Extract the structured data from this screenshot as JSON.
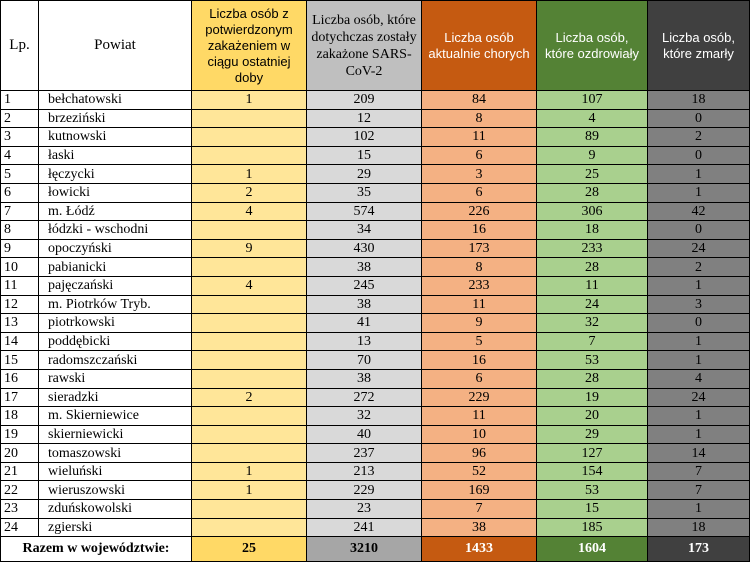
{
  "headers": {
    "lp": "Lp.",
    "powiat": "Powiat",
    "new": "Liczba osób z potwierdzonym zakażeniem w ciągu ostatniej doby",
    "total": "Liczba osób, które dotychczas zostały zakażone SARS-CoV-2",
    "active": "Liczba osób aktualnie chorych",
    "recovered": "Liczba osób, które ozdrowiały",
    "deceased": "Liczba osób, które zmarły"
  },
  "rows": [
    {
      "lp": "1",
      "powiat": "bełchatowski",
      "new": "1",
      "total": "209",
      "active": "84",
      "recovered": "107",
      "deceased": "18"
    },
    {
      "lp": "2",
      "powiat": "brzeziński",
      "new": "",
      "total": "12",
      "active": "8",
      "recovered": "4",
      "deceased": "0"
    },
    {
      "lp": "3",
      "powiat": "kutnowski",
      "new": "",
      "total": "102",
      "active": "11",
      "recovered": "89",
      "deceased": "2"
    },
    {
      "lp": "4",
      "powiat": "łaski",
      "new": "",
      "total": "15",
      "active": "6",
      "recovered": "9",
      "deceased": "0"
    },
    {
      "lp": "5",
      "powiat": "łęczycki",
      "new": "1",
      "total": "29",
      "active": "3",
      "recovered": "25",
      "deceased": "1"
    },
    {
      "lp": "6",
      "powiat": "łowicki",
      "new": "2",
      "total": "35",
      "active": "6",
      "recovered": "28",
      "deceased": "1"
    },
    {
      "lp": "7",
      "powiat": "m. Łódź",
      "new": "4",
      "total": "574",
      "active": "226",
      "recovered": "306",
      "deceased": "42"
    },
    {
      "lp": "8",
      "powiat": "łódzki - wschodni",
      "new": "",
      "total": "34",
      "active": "16",
      "recovered": "18",
      "deceased": "0"
    },
    {
      "lp": "9",
      "powiat": "opoczyński",
      "new": "9",
      "total": "430",
      "active": "173",
      "recovered": "233",
      "deceased": "24"
    },
    {
      "lp": "10",
      "powiat": "pabianicki",
      "new": "",
      "total": "38",
      "active": "8",
      "recovered": "28",
      "deceased": "2"
    },
    {
      "lp": "11",
      "powiat": "pajęczański",
      "new": "4",
      "total": "245",
      "active": "233",
      "recovered": "11",
      "deceased": "1"
    },
    {
      "lp": "12",
      "powiat": "m. Piotrków Tryb.",
      "new": "",
      "total": "38",
      "active": "11",
      "recovered": "24",
      "deceased": "3"
    },
    {
      "lp": "13",
      "powiat": "piotrkowski",
      "new": "",
      "total": "41",
      "active": "9",
      "recovered": "32",
      "deceased": "0"
    },
    {
      "lp": "14",
      "powiat": "poddębicki",
      "new": "",
      "total": "13",
      "active": "5",
      "recovered": "7",
      "deceased": "1"
    },
    {
      "lp": "15",
      "powiat": "radomszczański",
      "new": "",
      "total": "70",
      "active": "16",
      "recovered": "53",
      "deceased": "1"
    },
    {
      "lp": "16",
      "powiat": "rawski",
      "new": "",
      "total": "38",
      "active": "6",
      "recovered": "28",
      "deceased": "4"
    },
    {
      "lp": "17",
      "powiat": "sieradzki",
      "new": "2",
      "total": "272",
      "active": "229",
      "recovered": "19",
      "deceased": "24"
    },
    {
      "lp": "18",
      "powiat": "m. Skierniewice",
      "new": "",
      "total": "32",
      "active": "11",
      "recovered": "20",
      "deceased": "1"
    },
    {
      "lp": "19",
      "powiat": "skierniewicki",
      "new": "",
      "total": "40",
      "active": "10",
      "recovered": "29",
      "deceased": "1"
    },
    {
      "lp": "20",
      "powiat": "tomaszowski",
      "new": "",
      "total": "237",
      "active": "96",
      "recovered": "127",
      "deceased": "14"
    },
    {
      "lp": "21",
      "powiat": "wieluński",
      "new": "1",
      "total": "213",
      "active": "52",
      "recovered": "154",
      "deceased": "7"
    },
    {
      "lp": "22",
      "powiat": "wieruszowski",
      "new": "1",
      "total": "229",
      "active": "169",
      "recovered": "53",
      "deceased": "7"
    },
    {
      "lp": "23",
      "powiat": "zduńskowolski",
      "new": "",
      "total": "23",
      "active": "7",
      "recovered": "15",
      "deceased": "1"
    },
    {
      "lp": "24",
      "powiat": "zgierski",
      "new": "",
      "total": "241",
      "active": "38",
      "recovered": "185",
      "deceased": "18"
    }
  ],
  "footer": {
    "label": "Razem w województwie:",
    "new": "25",
    "total": "3210",
    "active": "1433",
    "recovered": "1604",
    "deceased": "173"
  },
  "colors": {
    "new_header": "#ffd966",
    "total_header": "#bfbfbf",
    "active_header": "#c55a11",
    "recovered_header": "#548235",
    "deceased_header": "#404040"
  }
}
